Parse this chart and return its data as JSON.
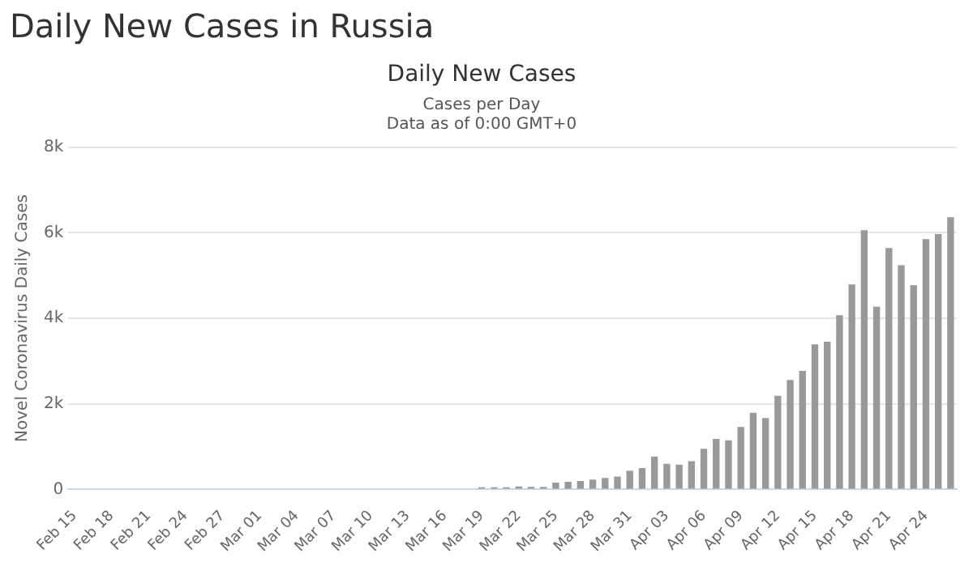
{
  "chart_data": {
    "type": "bar",
    "title": "Daily New Cases in Russia",
    "subtitle": "Daily New Cases",
    "annotations": [
      "Cases per Day",
      "Data as of 0:00 GMT+0"
    ],
    "ylabel": "Novel Coronavirus Daily Cases",
    "categories": [
      "Feb 15",
      null,
      null,
      "Feb 18",
      null,
      null,
      "Feb 21",
      null,
      null,
      "Feb 24",
      null,
      null,
      "Feb 27",
      null,
      null,
      "Mar 01",
      null,
      null,
      "Mar 04",
      null,
      null,
      "Mar 07",
      null,
      null,
      "Mar 10",
      null,
      null,
      "Mar 13",
      null,
      null,
      "Mar 16",
      null,
      null,
      "Mar 19",
      null,
      null,
      "Mar 22",
      null,
      null,
      "Mar 25",
      null,
      null,
      "Mar 28",
      null,
      null,
      "Mar 31",
      null,
      null,
      "Apr 03",
      null,
      null,
      "Apr 06",
      null,
      null,
      "Apr 09",
      null,
      null,
      "Apr 12",
      null,
      null,
      "Apr 15",
      null,
      null,
      "Apr 18",
      null,
      null,
      "Apr 21",
      null,
      null,
      "Apr 24",
      null,
      null
    ],
    "values": [
      0,
      0,
      0,
      0,
      0,
      0,
      0,
      0,
      0,
      0,
      0,
      0,
      0,
      0,
      0,
      0,
      0,
      0,
      0,
      0,
      0,
      0,
      0,
      0,
      0,
      0,
      0,
      0,
      0,
      0,
      0,
      0,
      0,
      50,
      50,
      50,
      70,
      60,
      60,
      160,
      180,
      200,
      230,
      270,
      300,
      440,
      500,
      770,
      600,
      580,
      660,
      950,
      1180,
      1150,
      1460,
      1790,
      1670,
      2190,
      2560,
      2770,
      3390,
      3450,
      4070,
      4790,
      6060,
      4270,
      5640,
      5240,
      4770,
      5850,
      5970,
      6360
    ],
    "color": "#999999",
    "ylim": [
      0,
      8000
    ],
    "yticks": [
      {
        "value": 0,
        "label": "0"
      },
      {
        "value": 2000,
        "label": "2k"
      },
      {
        "value": 4000,
        "label": "4k"
      },
      {
        "value": 6000,
        "label": "6k"
      },
      {
        "value": 8000,
        "label": "8k"
      }
    ],
    "grid": "y"
  }
}
